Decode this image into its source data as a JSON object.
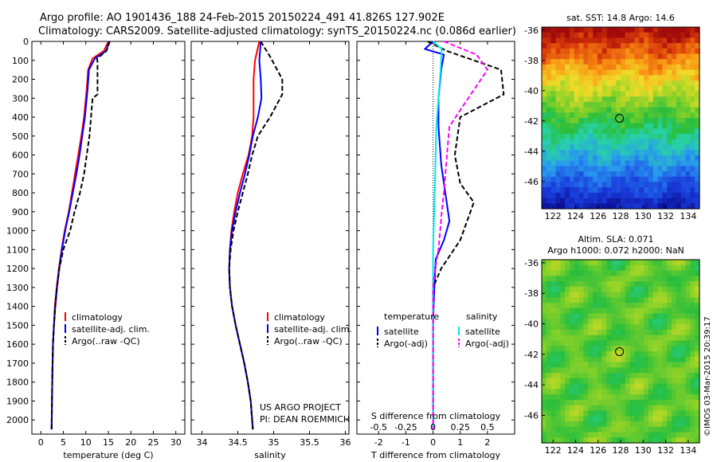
{
  "header": {
    "line1": "Argo profile: AO 1901436_188 24-Feb-2015 20150224_491 41.826S 127.902E",
    "line2": "Climatology: CARS2009. Satellite-adjusted climatology: synTS_20150224.nc (0.086d earlier)"
  },
  "side_label": "©IMOS 03-Mar-2015 20:39:17",
  "project": {
    "line1": "US ARGO PROJECT",
    "line2": "PI: DEAN ROEMMICH"
  },
  "colors": {
    "climatology": "#ff0000",
    "satellite": "#0000ff",
    "argo": "#000000",
    "sat_s": "#00e5ee",
    "argo_s": "#ff00ff"
  },
  "chart_data": [
    {
      "type": "line",
      "name": "temperature-profile",
      "xlabel": "temperature (deg C)",
      "ylabel": "",
      "xlim": [
        -2,
        32
      ],
      "ylim": [
        2075,
        0
      ],
      "xticks": [
        0,
        5,
        10,
        15,
        20,
        25,
        30
      ],
      "yticks": [
        0,
        100,
        200,
        300,
        400,
        500,
        600,
        700,
        800,
        900,
        1000,
        1100,
        1200,
        1300,
        1400,
        1500,
        1600,
        1700,
        1800,
        1900,
        2000
      ],
      "legend": [
        "climatology",
        "satellite-adj. clim.",
        "Argo(..raw -QC)"
      ],
      "legend_position": "lower-middle",
      "series": [
        {
          "name": "climatology",
          "x": [
            15.0,
            14.0,
            11.5,
            10.5,
            10.2,
            9.6,
            9.0,
            8.3,
            7.6,
            6.9,
            6.2,
            5.3,
            4.6,
            4.0,
            3.5,
            3.1,
            2.9,
            2.7,
            2.6,
            2.5,
            2.4
          ],
          "y": [
            0,
            50,
            90,
            150,
            250,
            400,
            500,
            600,
            700,
            800,
            900,
            1000,
            1100,
            1200,
            1300,
            1400,
            1500,
            1600,
            1700,
            1850,
            2050
          ]
        },
        {
          "name": "satellite-adj. clim.",
          "x": [
            15.2,
            14.5,
            12.0,
            10.7,
            10.4,
            9.8,
            9.2,
            8.6,
            7.9,
            7.1,
            6.3,
            5.4,
            4.7,
            4.1,
            3.6,
            3.2,
            2.9,
            2.7,
            2.6,
            2.5,
            2.4
          ],
          "y": [
            0,
            50,
            90,
            150,
            250,
            400,
            500,
            600,
            700,
            800,
            900,
            1000,
            1100,
            1200,
            1300,
            1400,
            1500,
            1600,
            1700,
            1850,
            2050
          ]
        },
        {
          "name": "Argo(..raw -QC)",
          "x": [
            15.3,
            14.6,
            12.5,
            12.6,
            12.6,
            11.5,
            10.8,
            10.2,
            9.6,
            8.7,
            7.5,
            6.5,
            5.0,
            4.1,
            3.6,
            3.2,
            2.9,
            2.7,
            2.6,
            2.5,
            2.4
          ],
          "y": [
            0,
            50,
            90,
            110,
            280,
            300,
            500,
            600,
            700,
            800,
            900,
            1000,
            1100,
            1200,
            1300,
            1400,
            1500,
            1600,
            1700,
            1850,
            2050
          ]
        }
      ]
    },
    {
      "type": "line",
      "name": "salinity-profile",
      "xlabel": "salinity",
      "ylabel": "",
      "xlim": [
        33.85,
        36.05
      ],
      "ylim": [
        2075,
        0
      ],
      "xticks": [
        34,
        34.5,
        35,
        35.5,
        36
      ],
      "legend": [
        "climatology",
        "satellite-adj. clim.",
        "Argo(..raw -QC)"
      ],
      "legend_position": "lower-middle",
      "series": [
        {
          "name": "climatology",
          "x": [
            34.8,
            34.74,
            34.72,
            34.72,
            34.72,
            34.7,
            34.65,
            34.57,
            34.5,
            34.45,
            34.41,
            34.39,
            34.38,
            34.39,
            34.42,
            34.47,
            34.53,
            34.59,
            34.64,
            34.68,
            34.71
          ],
          "y": [
            0,
            100,
            200,
            300,
            400,
            500,
            600,
            700,
            800,
            900,
            1000,
            1100,
            1200,
            1300,
            1400,
            1500,
            1600,
            1700,
            1800,
            1900,
            2050
          ]
        },
        {
          "name": "satellite-adj. clim.",
          "x": [
            34.82,
            34.8,
            34.82,
            34.83,
            34.78,
            34.71,
            34.66,
            34.6,
            34.53,
            34.47,
            34.42,
            34.39,
            34.38,
            34.39,
            34.42,
            34.47,
            34.53,
            34.59,
            34.64,
            34.68,
            34.71
          ],
          "y": [
            0,
            100,
            200,
            300,
            400,
            500,
            600,
            700,
            800,
            900,
            1000,
            1100,
            1200,
            1300,
            1400,
            1500,
            1600,
            1700,
            1800,
            1900,
            2050
          ]
        },
        {
          "name": "Argo(..raw -QC)",
          "x": [
            34.82,
            34.95,
            35.12,
            35.12,
            34.95,
            34.78,
            34.7,
            34.64,
            34.57,
            34.5,
            34.44,
            34.4,
            34.38,
            34.39,
            34.42,
            34.47,
            34.53,
            34.59,
            34.64,
            34.68,
            34.71
          ],
          "y": [
            0,
            80,
            200,
            280,
            400,
            500,
            600,
            700,
            800,
            900,
            1000,
            1100,
            1200,
            1300,
            1400,
            1500,
            1600,
            1700,
            1800,
            1900,
            2050
          ]
        }
      ]
    },
    {
      "type": "line",
      "name": "difference-profile",
      "xlabel": "T difference from climatology",
      "xlabel_top": "S difference from climatology",
      "xlim": [
        -2.8,
        3.0
      ],
      "ylim": [
        2075,
        0
      ],
      "xticks": [
        -2,
        -1,
        0,
        1,
        2
      ],
      "xticks_top": [
        "-0.5",
        "-0.25",
        "0",
        "0.25",
        "0.5"
      ],
      "legend_groups": [
        "temperature",
        "salinity"
      ],
      "legend": [
        "satellite",
        "Argo(-adj)",
        "satellite",
        "Argo(-adj)"
      ],
      "legend_position": "lower-middle",
      "series": [
        {
          "name": "satellite",
          "group": "temperature",
          "x": [
            0.0,
            -0.3,
            0.4,
            0.3,
            0.2,
            0.2,
            0.25,
            0.3,
            0.4,
            0.5,
            0.6,
            0.4,
            0.1,
            0.05,
            0.02,
            0.0,
            0.0,
            0.0,
            0.0,
            0.0
          ],
          "y": [
            0,
            40,
            70,
            150,
            300,
            450,
            550,
            650,
            750,
            850,
            950,
            1050,
            1150,
            1300,
            1400,
            1500,
            1600,
            1700,
            1850,
            2050
          ]
        },
        {
          "name": "Argo(-adj)",
          "group": "temperature",
          "x": [
            -0.2,
            0.5,
            2.5,
            2.6,
            1.0,
            0.8,
            1.0,
            1.5,
            1.0,
            0.3,
            0.0,
            0.0,
            0.0,
            0.0
          ],
          "y": [
            0,
            50,
            150,
            280,
            400,
            600,
            750,
            850,
            1050,
            1200,
            1300,
            1500,
            1800,
            2050
          ]
        },
        {
          "name": "satellite",
          "group": "salinity",
          "x": [
            0.0,
            0.08,
            0.07,
            0.05,
            0.03,
            0.02,
            0.01,
            0.0,
            0.0,
            0.0,
            0.0
          ],
          "y": [
            0,
            40,
            150,
            300,
            450,
            700,
            900,
            1100,
            1400,
            1800,
            2050
          ]
        },
        {
          "name": "Argo(-adj)",
          "group": "salinity",
          "x": [
            0.1,
            0.4,
            0.5,
            0.3,
            0.15,
            0.12,
            0.1,
            0.08,
            0.05,
            0.02,
            0.0,
            0.0,
            0.0
          ],
          "y": [
            0,
            70,
            150,
            320,
            450,
            650,
            800,
            900,
            1100,
            1200,
            1300,
            1600,
            2050
          ]
        }
      ]
    },
    {
      "type": "heatmap",
      "name": "sst-map",
      "title": "sat. SST: 14.8  Argo: 14.6",
      "xlim": [
        121,
        135
      ],
      "ylim": [
        -47.8,
        -35.8
      ],
      "xticks": [
        122,
        124,
        126,
        128,
        130,
        132,
        134
      ],
      "yticks": [
        -36,
        -38,
        -40,
        -42,
        -44,
        -46
      ],
      "marker": {
        "x": 127.902,
        "y": -41.826
      }
    },
    {
      "type": "heatmap",
      "name": "sla-map",
      "title_line1": "Altim. SLA: 0.071",
      "title_line2": "Argo h1000: 0.072  h2000: NaN",
      "xlim": [
        121,
        135
      ],
      "ylim": [
        -47.8,
        -35.8
      ],
      "xticks": [
        122,
        124,
        126,
        128,
        130,
        132,
        134
      ],
      "yticks": [
        -36,
        -38,
        -40,
        -42,
        -44,
        -46
      ],
      "marker": {
        "x": 127.902,
        "y": -41.826
      }
    }
  ]
}
